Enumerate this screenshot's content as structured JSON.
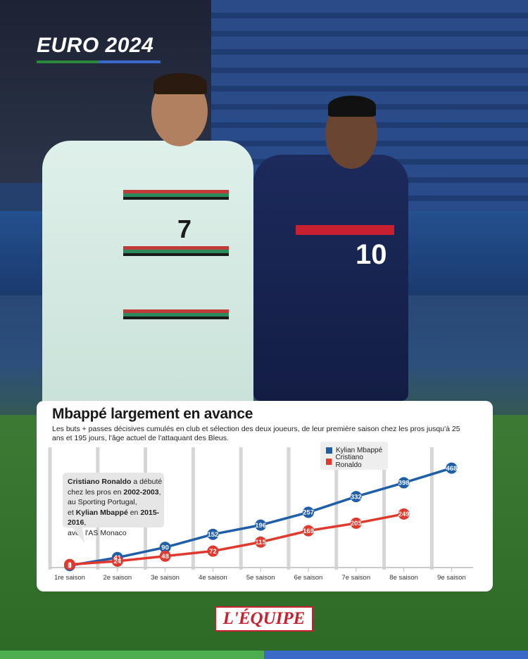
{
  "header": {
    "euro_title": "EURO 2024"
  },
  "chart_data": {
    "type": "line",
    "title": "Mbappé largement en avance",
    "subtitle": "Les buts + passes décisives cumulés en club et sélection des deux joueurs, de leur première saison chez les pros jusqu'à 25 ans et 195 jours, l'âge actuel de l'attaquant des Bleus.",
    "categories": [
      "1re saison",
      "2e saison",
      "3e saison",
      "4e saison",
      "5e saison",
      "6e saison",
      "7e saison",
      "8e saison",
      "9e saison"
    ],
    "series": [
      {
        "name": "Kylian Mbappé",
        "color": "#1f5ea8",
        "values": [
          3,
          41,
          90,
          152,
          196,
          257,
          332,
          398,
          468
        ]
      },
      {
        "name": "Cristiano Ronaldo",
        "color": "#e03a2e",
        "values": [
          8,
          24,
          48,
          72,
          115,
          169,
          205,
          249,
          null
        ]
      }
    ],
    "ylim": [
      0,
      480
    ],
    "grid": "vertical",
    "legend": "top-right",
    "annotation": {
      "line1_bold": "Cristiano Ronaldo",
      "line1_rest": " a débuté",
      "line2": "chez les pros en ",
      "line2_bold": "2002-2003",
      "line2_end": ",",
      "line3": "au Sporting Portugal,",
      "line4": "et ",
      "line4_bold": "Kylian Mbappé",
      "line4_mid": " en ",
      "line4_bold2": "2015-2016",
      "line4_end": ",",
      "line5": "avec l'AS Monaco"
    }
  },
  "footer": {
    "brand": "L'ÉQUIPE"
  },
  "photo": {
    "jersey_numbers": [
      "7",
      "10"
    ]
  }
}
